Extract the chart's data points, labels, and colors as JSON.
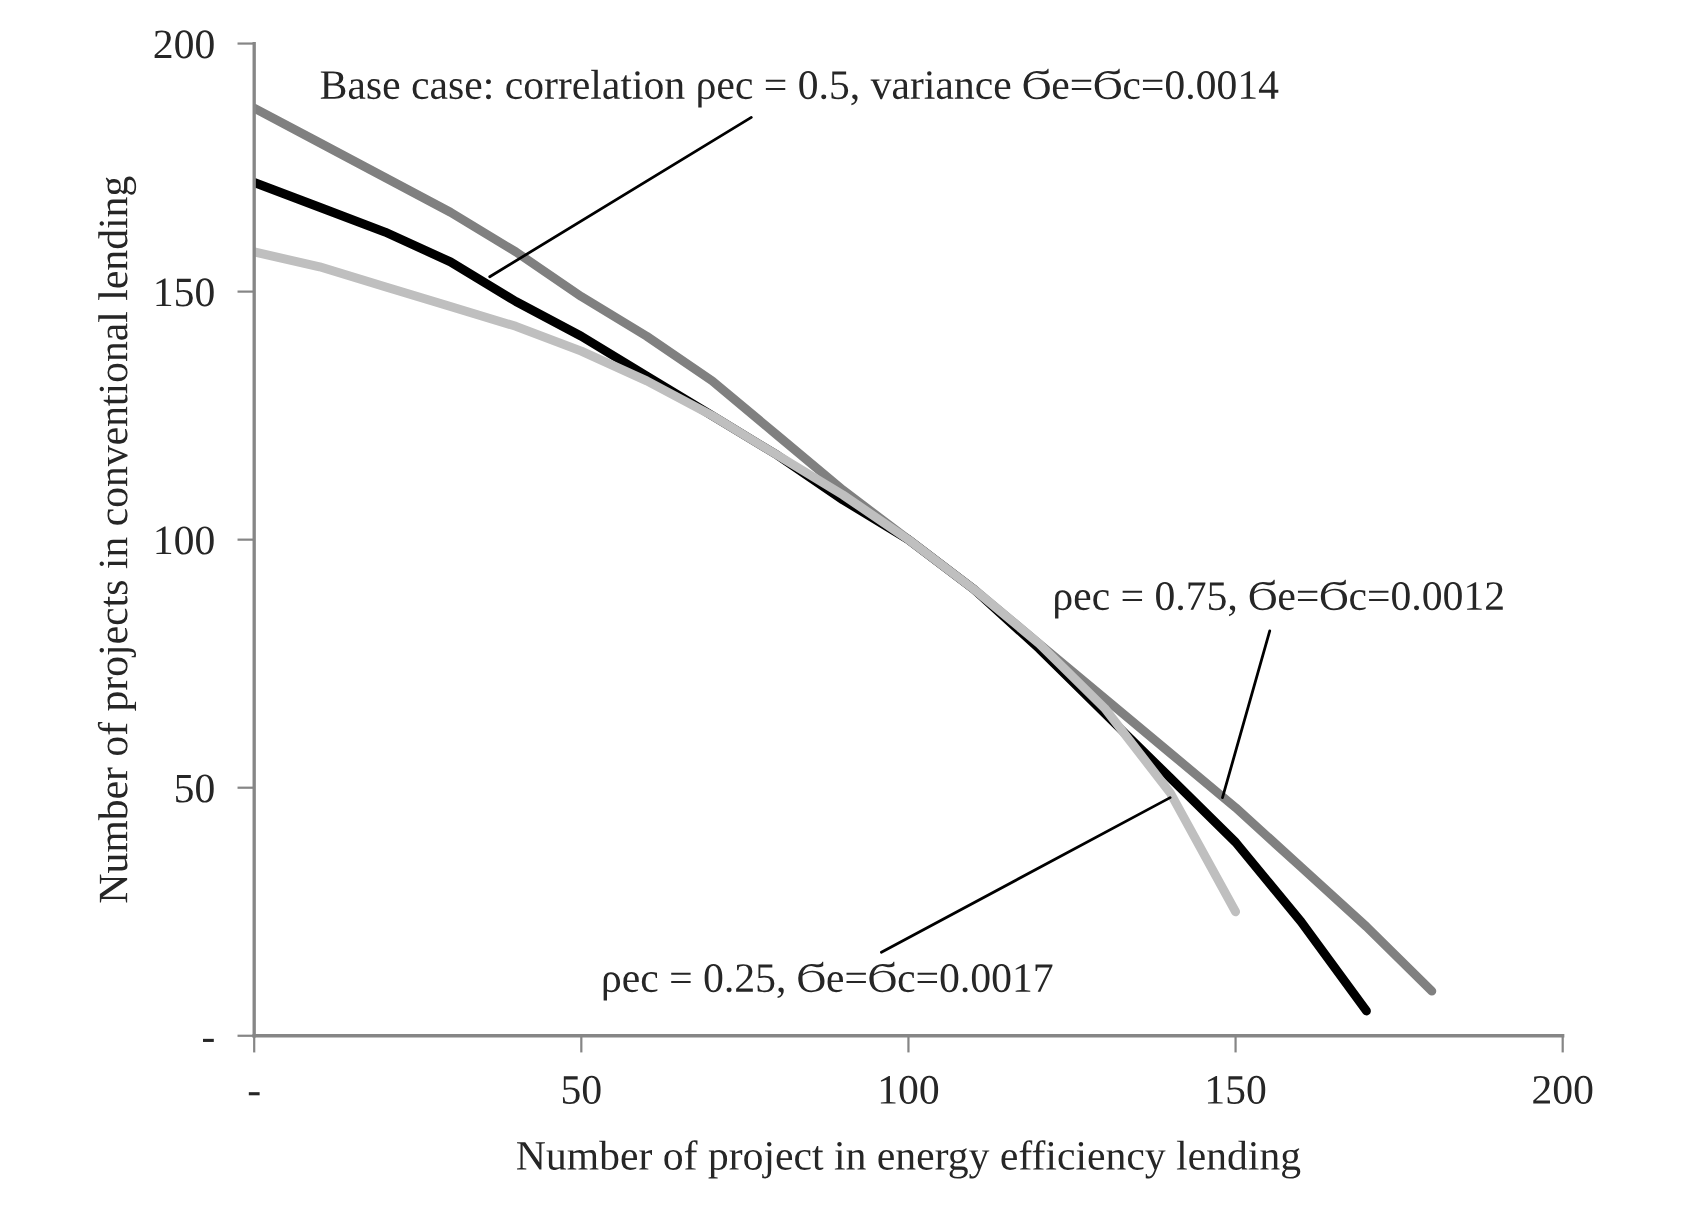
{
  "chart_data": {
    "type": "line",
    "xlabel": "Number of project in energy efficiency lending",
    "ylabel": "Number of projects in conventional lending",
    "xlim": [
      0,
      200
    ],
    "ylim": [
      0,
      200
    ],
    "xticks": [
      {
        "value": 0,
        "label": "-"
      },
      50,
      100,
      150,
      200
    ],
    "yticks": [
      {
        "value": 0,
        "label": "-"
      },
      50,
      100,
      150,
      200
    ],
    "grid": false,
    "legend": false,
    "marker": "none",
    "line_style": "solid",
    "series": [
      {
        "color": "#808080",
        "x": [
          0,
          10,
          20,
          30,
          40,
          50,
          60,
          70,
          80,
          90,
          100,
          110,
          120,
          130,
          140,
          150,
          160,
          170,
          180
        ],
        "values": [
          187,
          180,
          173,
          166,
          158,
          149,
          141,
          132,
          121,
          110,
          100,
          90,
          79,
          68,
          57,
          46,
          34,
          22,
          9
        ]
      },
      {
        "color": "#000000",
        "x": [
          0,
          10,
          20,
          30,
          40,
          50,
          60,
          70,
          80,
          90,
          100,
          110,
          120,
          130,
          140,
          150,
          160,
          170
        ],
        "values": [
          172,
          167,
          162,
          156,
          148,
          141,
          133,
          125,
          117,
          108,
          100,
          90,
          78,
          65,
          52,
          39,
          23,
          5
        ]
      },
      {
        "color": "#bfbfbf",
        "x": [
          0,
          10,
          20,
          30,
          40,
          50,
          60,
          70,
          80,
          90,
          100,
          110,
          120,
          130,
          140,
          150
        ],
        "values": [
          158,
          155,
          151,
          147,
          143,
          138,
          132,
          125,
          117,
          109,
          100,
          90,
          79,
          66,
          49,
          25
        ]
      }
    ],
    "annotations": [
      {
        "text": "Base case: correlation ρec = 0.5, variance Ϭe=Ϭc=0.0014",
        "x": 36,
        "y": 153
      },
      {
        "text": "ρec = 0.75, Ϭe=Ϭc=0.0012",
        "x": 148,
        "y": 48
      },
      {
        "text": "ρec = 0.25, Ϭe=Ϭc=0.0017",
        "x": 140,
        "y": 48
      }
    ]
  }
}
